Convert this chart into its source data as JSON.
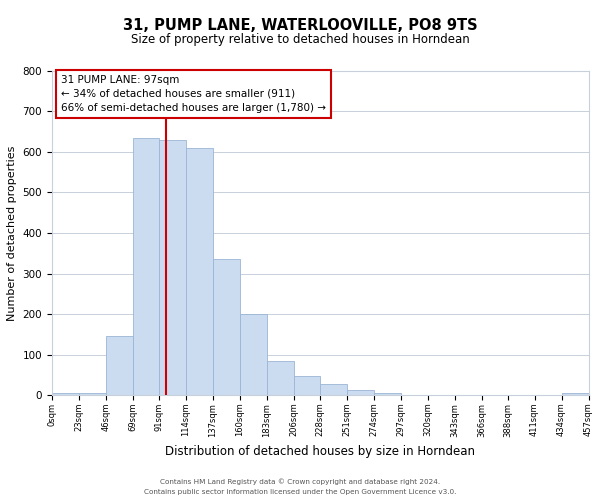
{
  "title": "31, PUMP LANE, WATERLOOVILLE, PO8 9TS",
  "subtitle": "Size of property relative to detached houses in Horndean",
  "xlabel": "Distribution of detached houses by size in Horndean",
  "ylabel": "Number of detached properties",
  "bar_edges": [
    0,
    23,
    46,
    69,
    91,
    114,
    137,
    160,
    183,
    206,
    228,
    251,
    274,
    297,
    320,
    343,
    366,
    388,
    411,
    434,
    457
  ],
  "bar_heights": [
    4,
    4,
    145,
    635,
    630,
    610,
    335,
    200,
    85,
    47,
    28,
    13,
    5,
    0,
    0,
    0,
    0,
    0,
    0,
    4
  ],
  "tick_labels": [
    "0sqm",
    "23sqm",
    "46sqm",
    "69sqm",
    "91sqm",
    "114sqm",
    "137sqm",
    "160sqm",
    "183sqm",
    "206sqm",
    "228sqm",
    "251sqm",
    "274sqm",
    "297sqm",
    "320sqm",
    "343sqm",
    "366sqm",
    "388sqm",
    "411sqm",
    "434sqm",
    "457sqm"
  ],
  "bar_color": "#ccdcf0",
  "bar_edge_color": "#9ab5d5",
  "property_line_x": 97,
  "property_line_color": "#cc0000",
  "annotation_line1": "31 PUMP LANE: 97sqm",
  "annotation_line2": "← 34% of detached houses are smaller (911)",
  "annotation_line3": "66% of semi-detached houses are larger (1,780) →",
  "annotation_box_color": "#ffffff",
  "annotation_box_edge": "#cc0000",
  "ylim": [
    0,
    800
  ],
  "yticks": [
    0,
    100,
    200,
    300,
    400,
    500,
    600,
    700,
    800
  ],
  "footer_line1": "Contains HM Land Registry data © Crown copyright and database right 2024.",
  "footer_line2": "Contains public sector information licensed under the Open Government Licence v3.0.",
  "background_color": "#ffffff",
  "grid_color": "#c8d0dc",
  "title_fontsize": 10.5,
  "subtitle_fontsize": 8.5,
  "ylabel_fontsize": 8,
  "xlabel_fontsize": 8.5,
  "ytick_fontsize": 7.5,
  "xtick_fontsize": 6.0,
  "footer_fontsize": 5.2,
  "annot_fontsize": 7.5
}
